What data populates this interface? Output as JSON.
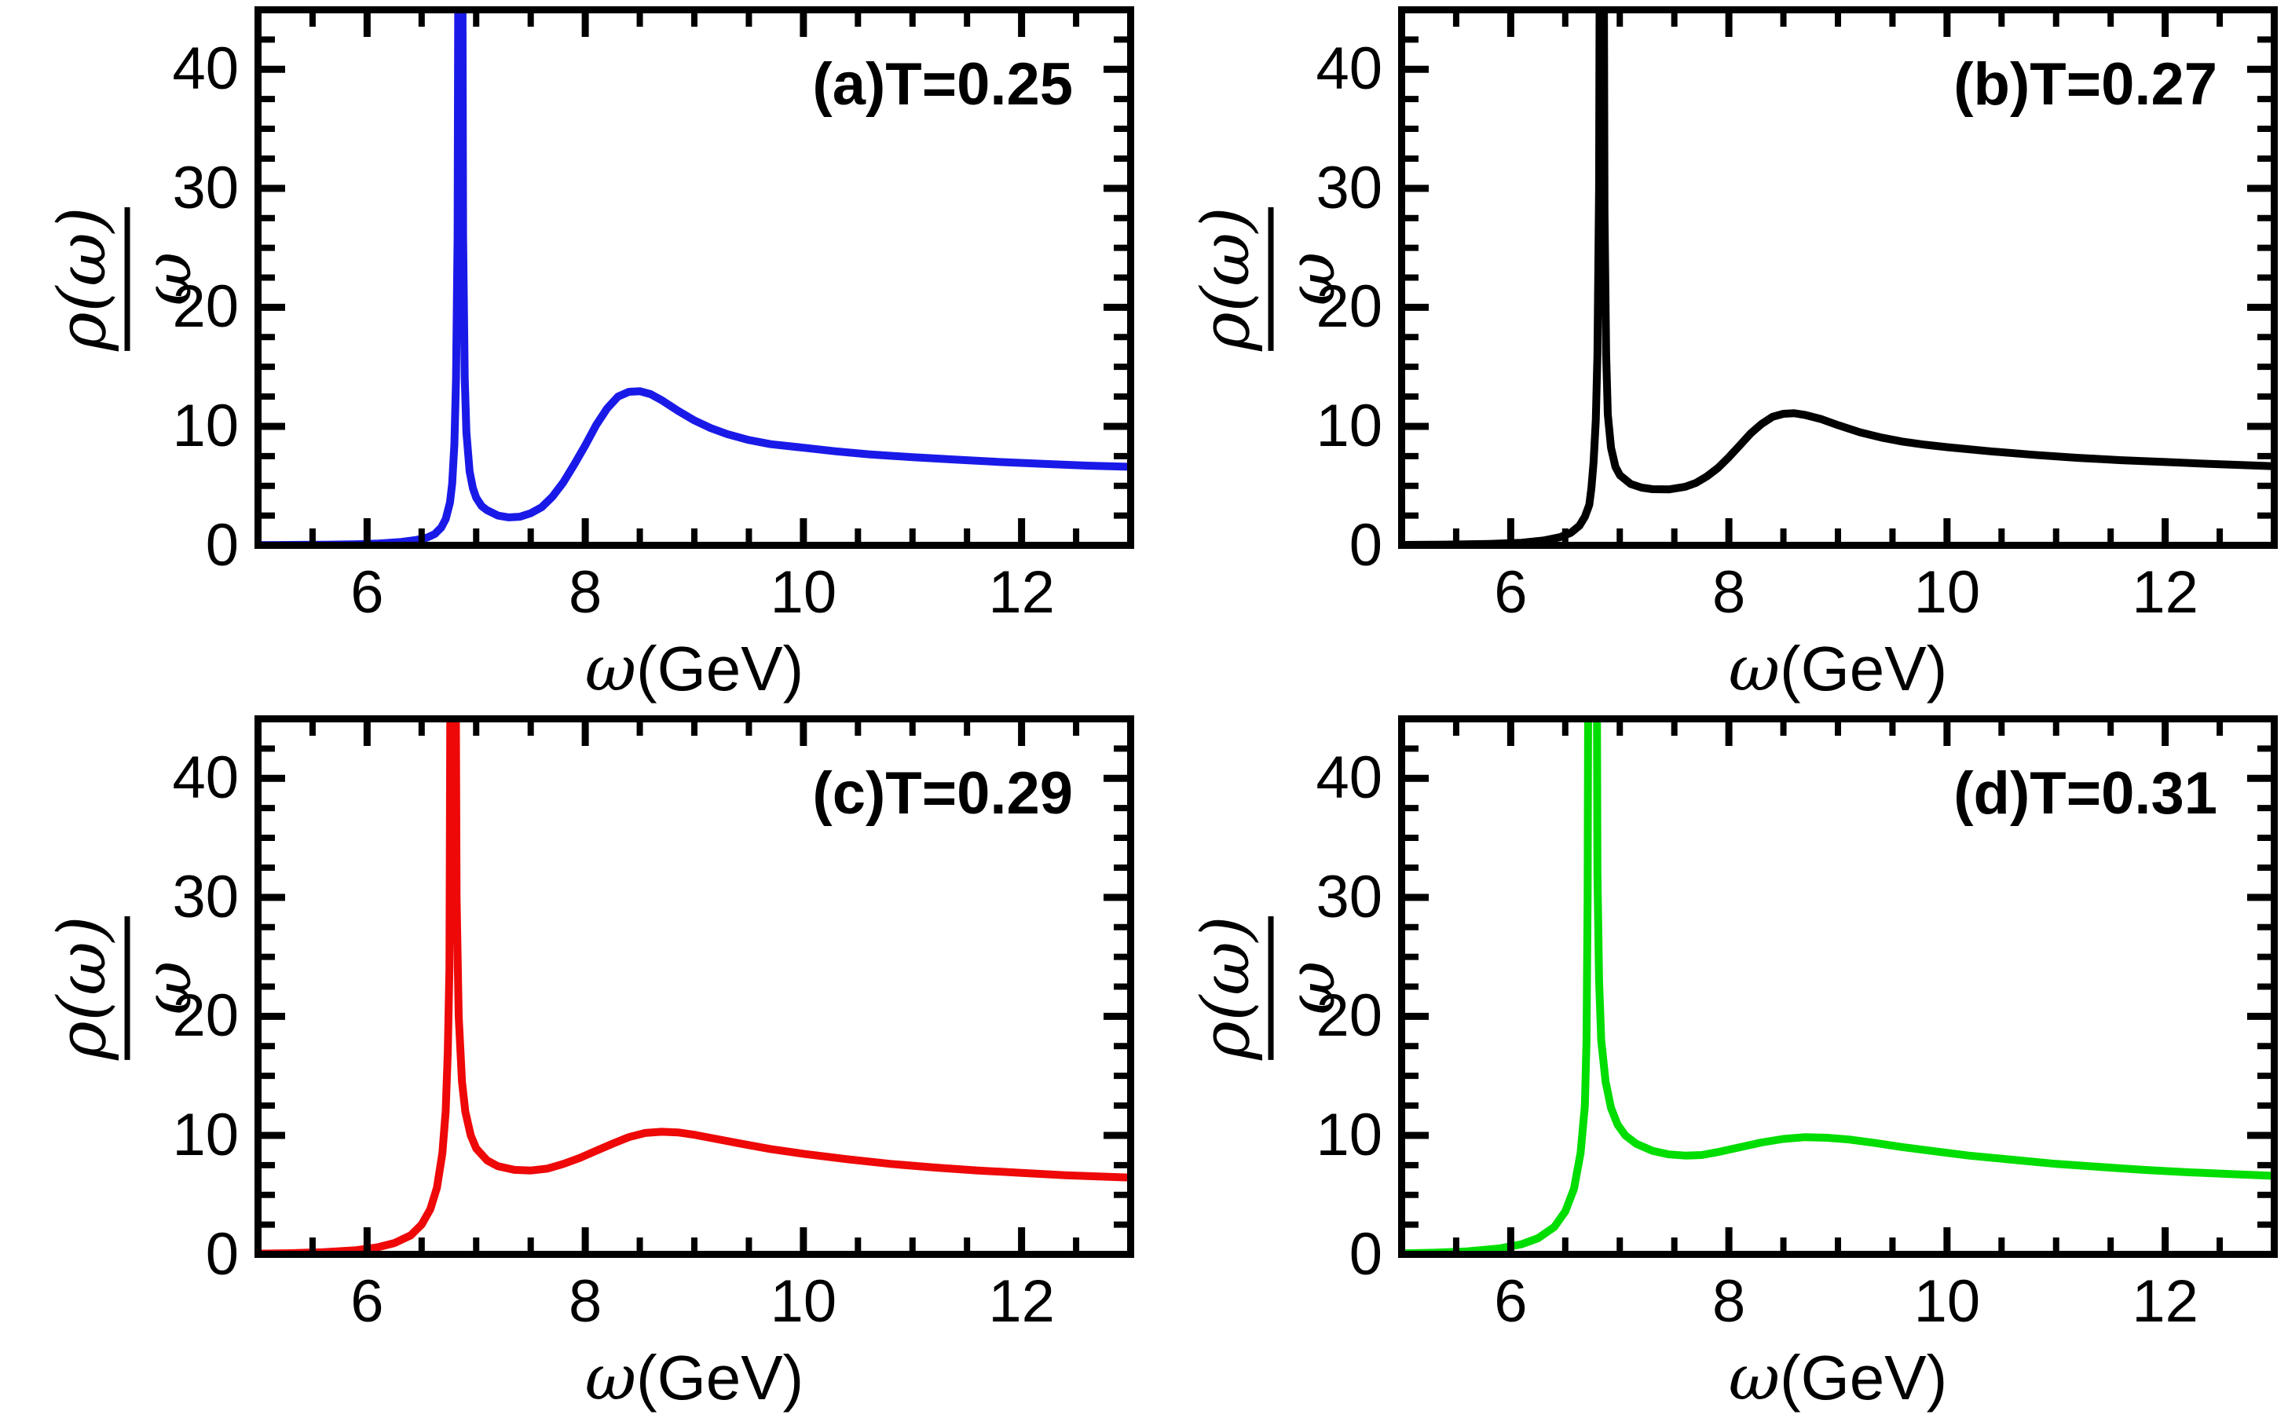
{
  "figure": {
    "background": "#ffffff",
    "frame_color": "#000000",
    "x_range": [
      5,
      13
    ],
    "y_range": [
      0,
      45
    ],
    "x_ticks": [
      6,
      8,
      10,
      12
    ],
    "x_minor_ticks": [
      5.5,
      6.5,
      7,
      7.5,
      8.5,
      9,
      9.5,
      10.5,
      11,
      11.5,
      12.5
    ],
    "y_ticks": [
      10,
      20,
      30,
      40
    ],
    "y_tick_labels": [
      0,
      10,
      20,
      30,
      40
    ],
    "y_minor_ticks": [
      2.5,
      5,
      7.5,
      12.5,
      15,
      17.5,
      22.5,
      25,
      27.5,
      32.5,
      35,
      37.5,
      42.5
    ],
    "y_axis_label": {
      "numerator": "ρ(ω)",
      "denominator": "ω"
    },
    "x_axis_label": {
      "symbol": "ω",
      "unit": "(GeV)",
      "text": "ω(GeV)"
    }
  },
  "chart_data": [
    {
      "id": "a",
      "type": "line",
      "annotation": "(a)T=0.25",
      "temperature": 0.25,
      "color": "#1a1ae8",
      "xlabel": "ω(GeV)",
      "ylabel": "ρ(ω)/ω",
      "x_range": [
        5,
        13
      ],
      "y_range": [
        0,
        45
      ],
      "sharp_peak_omega": 6.85,
      "peak_clipped_above": 45,
      "points": [
        [
          5.0,
          0.02
        ],
        [
          5.3,
          0.03
        ],
        [
          5.6,
          0.05
        ],
        [
          5.9,
          0.09
        ],
        [
          6.1,
          0.15
        ],
        [
          6.3,
          0.27
        ],
        [
          6.45,
          0.45
        ],
        [
          6.55,
          0.65
        ],
        [
          6.62,
          0.95
        ],
        [
          6.68,
          1.5
        ],
        [
          6.72,
          2.2
        ],
        [
          6.76,
          3.6
        ],
        [
          6.78,
          5.2
        ],
        [
          6.8,
          8.5
        ],
        [
          6.815,
          14
        ],
        [
          6.83,
          26
        ],
        [
          6.845,
          80
        ],
        [
          6.865,
          80
        ],
        [
          6.88,
          26
        ],
        [
          6.895,
          14
        ],
        [
          6.91,
          9.5
        ],
        [
          6.94,
          6.2
        ],
        [
          6.97,
          4.8
        ],
        [
          7.0,
          4.0
        ],
        [
          7.05,
          3.3
        ],
        [
          7.1,
          2.95
        ],
        [
          7.2,
          2.5
        ],
        [
          7.3,
          2.35
        ],
        [
          7.4,
          2.4
        ],
        [
          7.5,
          2.7
        ],
        [
          7.6,
          3.2
        ],
        [
          7.7,
          4.1
        ],
        [
          7.8,
          5.3
        ],
        [
          7.9,
          6.8
        ],
        [
          8.0,
          8.4
        ],
        [
          8.1,
          10.1
        ],
        [
          8.2,
          11.5
        ],
        [
          8.3,
          12.5
        ],
        [
          8.4,
          12.9
        ],
        [
          8.5,
          12.95
        ],
        [
          8.6,
          12.7
        ],
        [
          8.7,
          12.2
        ],
        [
          8.85,
          11.3
        ],
        [
          9.0,
          10.5
        ],
        [
          9.15,
          9.85
        ],
        [
          9.3,
          9.35
        ],
        [
          9.5,
          8.85
        ],
        [
          9.7,
          8.5
        ],
        [
          10.0,
          8.2
        ],
        [
          10.3,
          7.9
        ],
        [
          10.6,
          7.65
        ],
        [
          11.0,
          7.4
        ],
        [
          11.4,
          7.2
        ],
        [
          11.8,
          7.0
        ],
        [
          12.2,
          6.85
        ],
        [
          12.6,
          6.7
        ],
        [
          13.0,
          6.6
        ]
      ]
    },
    {
      "id": "b",
      "type": "line",
      "annotation": "(b)T=0.27",
      "temperature": 0.27,
      "color": "#000000",
      "xlabel": "ω(GeV)",
      "ylabel": "ρ(ω)/ω",
      "x_range": [
        5,
        13
      ],
      "y_range": [
        0,
        45
      ],
      "sharp_peak_omega": 6.83,
      "peak_clipped_above": 45,
      "points": [
        [
          5.0,
          0.03
        ],
        [
          5.4,
          0.06
        ],
        [
          5.8,
          0.12
        ],
        [
          6.1,
          0.22
        ],
        [
          6.3,
          0.4
        ],
        [
          6.45,
          0.68
        ],
        [
          6.55,
          1.05
        ],
        [
          6.63,
          1.65
        ],
        [
          6.68,
          2.4
        ],
        [
          6.72,
          3.4
        ],
        [
          6.74,
          4.8
        ],
        [
          6.76,
          7.0
        ],
        [
          6.78,
          10.5
        ],
        [
          6.795,
          16
        ],
        [
          6.81,
          30
        ],
        [
          6.825,
          80
        ],
        [
          6.845,
          80
        ],
        [
          6.86,
          28
        ],
        [
          6.875,
          16
        ],
        [
          6.89,
          11
        ],
        [
          6.92,
          8.2
        ],
        [
          6.96,
          6.6
        ],
        [
          7.0,
          5.9
        ],
        [
          7.1,
          5.15
        ],
        [
          7.2,
          4.85
        ],
        [
          7.3,
          4.72
        ],
        [
          7.45,
          4.7
        ],
        [
          7.6,
          4.92
        ],
        [
          7.7,
          5.25
        ],
        [
          7.8,
          5.8
        ],
        [
          7.9,
          6.5
        ],
        [
          8.0,
          7.4
        ],
        [
          8.1,
          8.4
        ],
        [
          8.2,
          9.4
        ],
        [
          8.3,
          10.2
        ],
        [
          8.4,
          10.8
        ],
        [
          8.5,
          11.05
        ],
        [
          8.6,
          11.1
        ],
        [
          8.7,
          10.95
        ],
        [
          8.85,
          10.6
        ],
        [
          9.0,
          10.1
        ],
        [
          9.2,
          9.5
        ],
        [
          9.4,
          9.05
        ],
        [
          9.6,
          8.7
        ],
        [
          9.8,
          8.45
        ],
        [
          10.0,
          8.25
        ],
        [
          10.4,
          7.9
        ],
        [
          10.8,
          7.6
        ],
        [
          11.2,
          7.35
        ],
        [
          11.6,
          7.15
        ],
        [
          12.0,
          7.0
        ],
        [
          12.4,
          6.85
        ],
        [
          12.8,
          6.72
        ],
        [
          13.0,
          6.65
        ]
      ]
    },
    {
      "id": "c",
      "type": "line",
      "annotation": "(c)T=0.29",
      "temperature": 0.29,
      "color": "#ee0808",
      "xlabel": "ω(GeV)",
      "ylabel": "ρ(ω)/ω",
      "x_range": [
        5,
        13
      ],
      "y_range": [
        0,
        45
      ],
      "sharp_peak_omega": 6.79,
      "peak_clipped_above": 45,
      "points": [
        [
          5.0,
          0.06
        ],
        [
          5.3,
          0.1
        ],
        [
          5.6,
          0.18
        ],
        [
          5.9,
          0.35
        ],
        [
          6.1,
          0.6
        ],
        [
          6.25,
          0.95
        ],
        [
          6.4,
          1.6
        ],
        [
          6.5,
          2.5
        ],
        [
          6.58,
          3.8
        ],
        [
          6.64,
          5.6
        ],
        [
          6.69,
          8.5
        ],
        [
          6.72,
          12
        ],
        [
          6.74,
          17
        ],
        [
          6.755,
          24
        ],
        [
          6.775,
          80
        ],
        [
          6.8,
          80
        ],
        [
          6.82,
          30
        ],
        [
          6.84,
          20
        ],
        [
          6.87,
          14.5
        ],
        [
          6.9,
          12
        ],
        [
          6.95,
          10
        ],
        [
          7.0,
          8.9
        ],
        [
          7.1,
          7.9
        ],
        [
          7.2,
          7.4
        ],
        [
          7.35,
          7.1
        ],
        [
          7.5,
          7.05
        ],
        [
          7.65,
          7.2
        ],
        [
          7.8,
          7.6
        ],
        [
          7.95,
          8.1
        ],
        [
          8.1,
          8.7
        ],
        [
          8.25,
          9.3
        ],
        [
          8.4,
          9.85
        ],
        [
          8.55,
          10.2
        ],
        [
          8.7,
          10.3
        ],
        [
          8.85,
          10.25
        ],
        [
          9.0,
          10.05
        ],
        [
          9.2,
          9.7
        ],
        [
          9.4,
          9.35
        ],
        [
          9.7,
          8.85
        ],
        [
          10.0,
          8.45
        ],
        [
          10.4,
          8.0
        ],
        [
          10.8,
          7.6
        ],
        [
          11.2,
          7.3
        ],
        [
          11.6,
          7.05
        ],
        [
          12.0,
          6.85
        ],
        [
          12.4,
          6.65
        ],
        [
          12.7,
          6.55
        ],
        [
          13.0,
          6.45
        ]
      ]
    },
    {
      "id": "d",
      "type": "line",
      "annotation": "(d)T=0.31",
      "temperature": 0.31,
      "color": "#00dd00",
      "xlabel": "ω(GeV)",
      "ylabel": "ρ(ω)/ω",
      "x_range": [
        5,
        13
      ],
      "y_range": [
        0,
        45
      ],
      "sharp_peak_omega": 6.75,
      "peak_clipped_above": 45,
      "points": [
        [
          5.0,
          0.08
        ],
        [
          5.3,
          0.14
        ],
        [
          5.6,
          0.25
        ],
        [
          5.9,
          0.5
        ],
        [
          6.1,
          0.85
        ],
        [
          6.25,
          1.35
        ],
        [
          6.4,
          2.3
        ],
        [
          6.5,
          3.6
        ],
        [
          6.58,
          5.5
        ],
        [
          6.64,
          8.5
        ],
        [
          6.68,
          12.5
        ],
        [
          6.695,
          18
        ],
        [
          6.705,
          30
        ],
        [
          6.72,
          80
        ],
        [
          6.78,
          80
        ],
        [
          6.795,
          32
        ],
        [
          6.81,
          23
        ],
        [
          6.83,
          18
        ],
        [
          6.87,
          14.5
        ],
        [
          6.92,
          12.3
        ],
        [
          6.98,
          10.9
        ],
        [
          7.05,
          10.0
        ],
        [
          7.15,
          9.3
        ],
        [
          7.3,
          8.7
        ],
        [
          7.45,
          8.4
        ],
        [
          7.6,
          8.3
        ],
        [
          7.75,
          8.35
        ],
        [
          7.9,
          8.6
        ],
        [
          8.1,
          9.0
        ],
        [
          8.3,
          9.4
        ],
        [
          8.5,
          9.7
        ],
        [
          8.7,
          9.85
        ],
        [
          8.9,
          9.8
        ],
        [
          9.1,
          9.65
        ],
        [
          9.35,
          9.35
        ],
        [
          9.6,
          9.0
        ],
        [
          9.9,
          8.65
        ],
        [
          10.2,
          8.3
        ],
        [
          10.6,
          7.95
        ],
        [
          11.0,
          7.6
        ],
        [
          11.4,
          7.35
        ],
        [
          11.8,
          7.1
        ],
        [
          12.2,
          6.9
        ],
        [
          12.6,
          6.75
        ],
        [
          13.0,
          6.6
        ]
      ]
    }
  ]
}
